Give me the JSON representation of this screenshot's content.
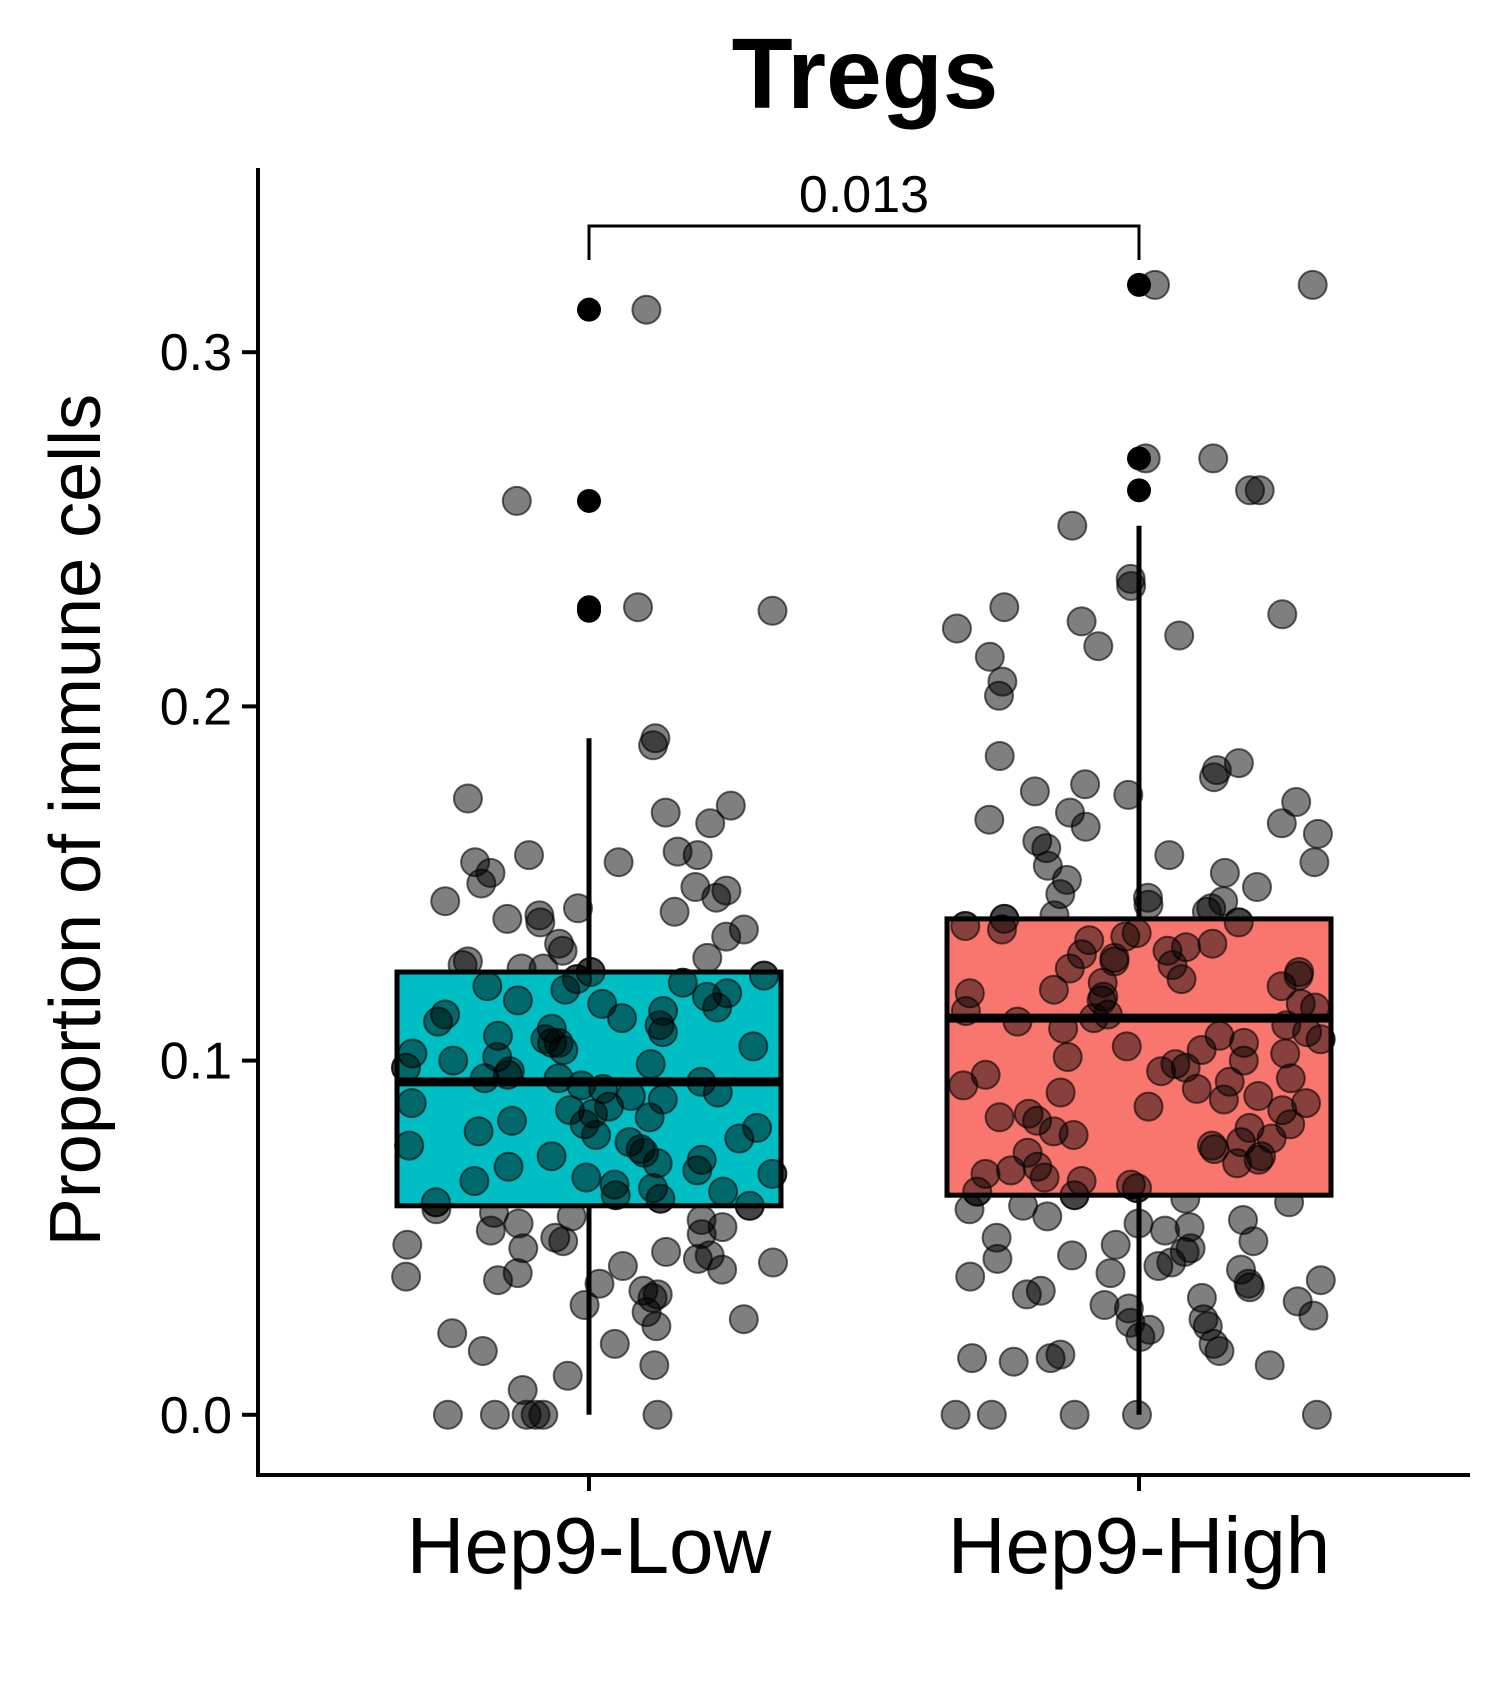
{
  "chart_data": {
    "type": "box",
    "title": "Tregs",
    "xlabel": "",
    "ylabel": "Proportion of immune cells",
    "ylim": [
      -0.017,
      0.352
    ],
    "yticks": [
      "0.0",
      "0.1",
      "0.2",
      "0.3"
    ],
    "grid": false,
    "categories": [
      "Hep9-Low",
      "Hep9-High"
    ],
    "colors": {
      "Hep9-Low": "#00BFC4",
      "Hep9-High": "#F8766D",
      "points": "#000000",
      "outline": "#000000"
    },
    "boxes": [
      {
        "category": "Hep9-Low",
        "q1": 0.059,
        "median": 0.094,
        "q3": 0.125,
        "whisker_low": 0.0,
        "whisker_high": 0.191,
        "outliers": [
          0.312,
          0.258,
          0.228,
          0.227
        ]
      },
      {
        "category": "Hep9-High",
        "q1": 0.062,
        "median": 0.112,
        "q3": 0.14,
        "whisker_low": 0.0,
        "whisker_high": 0.251,
        "outliers": [
          0.319,
          0.27,
          0.261
        ]
      }
    ],
    "comparison": {
      "groups": [
        "Hep9-Low",
        "Hep9-High"
      ],
      "label": "0.013"
    },
    "points": {
      "Hep9-Low": [
        0.312,
        0.258,
        0.228,
        0.227,
        0.191,
        0.189,
        0.174,
        0.172,
        0.17,
        0.167,
        0.159,
        0.158,
        0.158,
        0.156,
        0.156,
        0.153,
        0.15,
        0.149,
        0.148,
        0.146,
        0.145,
        0.143,
        0.142,
        0.141,
        0.14,
        0.139,
        0.137,
        0.135,
        0.133,
        0.131,
        0.129,
        0.128,
        0.127,
        0.126,
        0.126,
        0.125,
        0.124,
        0.123,
        0.122,
        0.121,
        0.12,
        0.119,
        0.118,
        0.117,
        0.116,
        0.115,
        0.114,
        0.113,
        0.112,
        0.111,
        0.11,
        0.109,
        0.108,
        0.107,
        0.106,
        0.105,
        0.105,
        0.104,
        0.103,
        0.102,
        0.101,
        0.1,
        0.099,
        0.098,
        0.097,
        0.096,
        0.095,
        0.095,
        0.094,
        0.093,
        0.092,
        0.091,
        0.09,
        0.089,
        0.088,
        0.087,
        0.086,
        0.085,
        0.084,
        0.083,
        0.082,
        0.081,
        0.08,
        0.079,
        0.078,
        0.077,
        0.076,
        0.075,
        0.074,
        0.073,
        0.072,
        0.071,
        0.07,
        0.069,
        0.068,
        0.067,
        0.066,
        0.065,
        0.064,
        0.063,
        0.062,
        0.061,
        0.06,
        0.059,
        0.058,
        0.057,
        0.056,
        0.055,
        0.054,
        0.053,
        0.052,
        0.051,
        0.05,
        0.049,
        0.048,
        0.047,
        0.046,
        0.045,
        0.044,
        0.043,
        0.042,
        0.041,
        0.04,
        0.039,
        0.038,
        0.037,
        0.035,
        0.034,
        0.033,
        0.031,
        0.029,
        0.027,
        0.025,
        0.023,
        0.02,
        0.018,
        0.014,
        0.011,
        0.007,
        0.0,
        0.0,
        0.0,
        0.0,
        0.0,
        0.0
      ],
      "Hep9-High": [
        0.319,
        0.319,
        0.27,
        0.27,
        0.261,
        0.261,
        0.251,
        0.236,
        0.234,
        0.228,
        0.226,
        0.224,
        0.222,
        0.22,
        0.217,
        0.214,
        0.207,
        0.203,
        0.186,
        0.184,
        0.182,
        0.18,
        0.178,
        0.176,
        0.175,
        0.173,
        0.17,
        0.168,
        0.167,
        0.166,
        0.164,
        0.162,
        0.16,
        0.158,
        0.156,
        0.155,
        0.153,
        0.151,
        0.149,
        0.147,
        0.146,
        0.145,
        0.144,
        0.143,
        0.142,
        0.141,
        0.14,
        0.139,
        0.138,
        0.137,
        0.136,
        0.135,
        0.134,
        0.133,
        0.132,
        0.131,
        0.13,
        0.129,
        0.128,
        0.127,
        0.126,
        0.125,
        0.124,
        0.123,
        0.122,
        0.121,
        0.12,
        0.119,
        0.118,
        0.117,
        0.116,
        0.115,
        0.114,
        0.113,
        0.112,
        0.111,
        0.11,
        0.109,
        0.108,
        0.107,
        0.106,
        0.105,
        0.104,
        0.103,
        0.102,
        0.101,
        0.1,
        0.099,
        0.098,
        0.097,
        0.096,
        0.095,
        0.094,
        0.093,
        0.092,
        0.091,
        0.09,
        0.089,
        0.088,
        0.087,
        0.086,
        0.085,
        0.084,
        0.083,
        0.082,
        0.081,
        0.08,
        0.079,
        0.078,
        0.077,
        0.076,
        0.075,
        0.074,
        0.073,
        0.072,
        0.071,
        0.07,
        0.069,
        0.068,
        0.067,
        0.066,
        0.065,
        0.064,
        0.063,
        0.062,
        0.061,
        0.06,
        0.059,
        0.058,
        0.056,
        0.055,
        0.054,
        0.053,
        0.052,
        0.05,
        0.049,
        0.048,
        0.047,
        0.046,
        0.045,
        0.044,
        0.043,
        0.042,
        0.041,
        0.04,
        0.039,
        0.038,
        0.037,
        0.036,
        0.035,
        0.034,
        0.033,
        0.032,
        0.031,
        0.03,
        0.028,
        0.027,
        0.026,
        0.025,
        0.024,
        0.022,
        0.02,
        0.018,
        0.017,
        0.016,
        0.016,
        0.015,
        0.014,
        0.0,
        0.0,
        0.0,
        0.0,
        0.0
      ]
    }
  }
}
